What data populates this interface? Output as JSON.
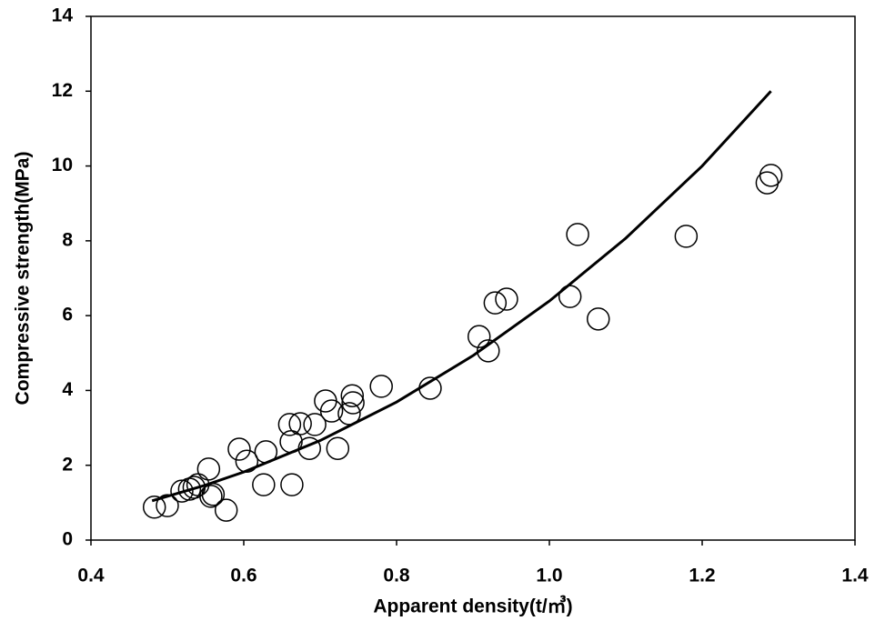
{
  "chart_data": {
    "type": "scatter",
    "x_label": "Apparent density(t/㎥)",
    "y_label": "Compressive strength(MPa)",
    "xlim": [
      0.4,
      1.4
    ],
    "xticks": [
      0.4,
      0.6,
      0.8,
      1.0,
      1.2,
      1.4
    ],
    "ylim": [
      0,
      14
    ],
    "yticks": [
      0,
      2,
      4,
      6,
      8,
      10,
      12,
      14
    ],
    "grid": false,
    "series": [
      {
        "mode": "markers",
        "color": "#000000",
        "x": [
          0.483,
          0.5,
          0.519,
          0.529,
          0.535,
          0.54,
          0.554,
          0.557,
          0.56,
          0.577,
          0.594,
          0.604,
          0.629,
          0.626,
          0.663,
          0.66,
          0.662,
          0.674,
          0.686,
          0.693,
          0.707,
          0.715,
          0.723,
          0.742,
          0.743,
          0.738,
          0.78,
          0.844,
          0.908,
          0.92,
          0.929,
          0.944,
          1.027,
          1.037,
          1.064,
          1.179,
          1.285,
          1.29
        ],
        "values": [
          0.88,
          0.92,
          1.31,
          1.36,
          1.41,
          1.48,
          1.9,
          1.17,
          1.22,
          0.8,
          2.43,
          2.11,
          2.36,
          1.48,
          1.48,
          3.09,
          2.63,
          3.11,
          2.45,
          3.09,
          3.72,
          3.45,
          2.45,
          3.86,
          3.67,
          3.38,
          4.11,
          4.06,
          5.44,
          5.06,
          6.34,
          6.44,
          6.51,
          8.17,
          5.91,
          8.12,
          9.55,
          9.75
        ]
      },
      {
        "mode": "line",
        "color": "#000000",
        "x": [
          0.48,
          0.55,
          0.6,
          0.7,
          0.8,
          0.9,
          1.0,
          1.1,
          1.2,
          1.29
        ],
        "values": [
          1.05,
          1.47,
          1.82,
          2.66,
          3.69,
          4.93,
          6.39,
          8.07,
          10.0,
          12.0
        ]
      }
    ]
  }
}
